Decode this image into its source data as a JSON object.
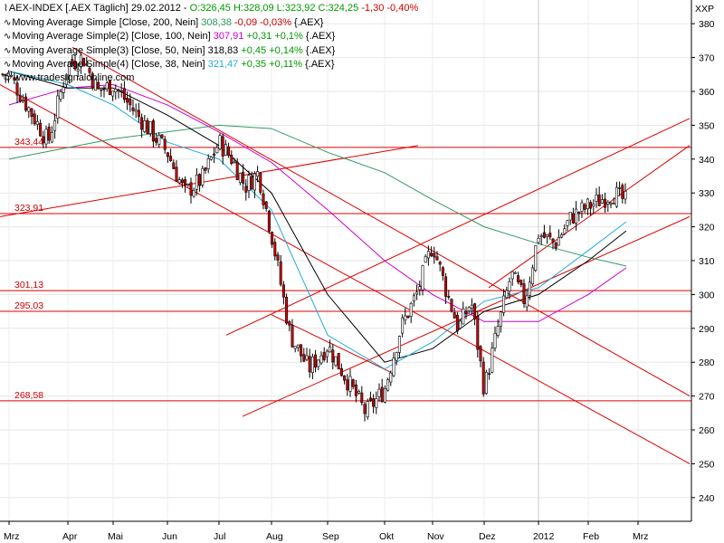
{
  "header": {
    "instrument": "AEX-INDEX [.AEX Täglich]",
    "date": "29.02.2012",
    "ohlc": "O:326,45 H:328,09 L:323,92 C:324,25",
    "change": "-1,30 -0,40%"
  },
  "indicators": [
    {
      "label": "Moving Average Simple [Close, 200, Nein]",
      "value": "308,38",
      "value_color": "#339966",
      "change": "-0,09 -0,03%",
      "change_sign": "neg",
      "suffix": "{.AEX}"
    },
    {
      "label": "Moving Average Simple(2) [Close, 100, Nein]",
      "value": "307,91",
      "value_color": "#cc00cc",
      "change": "+0,31 +0,1%",
      "change_sign": "pos",
      "suffix": "{.AEX}"
    },
    {
      "label": "Moving Average Simple(3) [Close, 50, Nein]",
      "value": "318,83",
      "value_color": "#000000",
      "change": "+0,45 +0,14%",
      "change_sign": "pos",
      "suffix": "{.AEX}"
    },
    {
      "label": "Moving Average Simple(4) [Close, 38, Nein]",
      "value": "321,47",
      "value_color": "#22aadd",
      "change": "+0,35 +0,11%",
      "change_sign": "pos",
      "suffix": "{.AEX}"
    }
  ],
  "watermark": "© www.tradesignalonline.com",
  "chart_data": {
    "type": "candlestick",
    "axis_label": "XXP",
    "x_ticks": [
      "Mrz",
      "Apr",
      "Mai",
      "Jun",
      "Jul",
      "Aug",
      "Sep",
      "Okt",
      "Nov",
      "Dez",
      "2012",
      "Feb",
      "Mrz"
    ],
    "y_ticks": [
      240,
      250,
      260,
      270,
      280,
      290,
      300,
      310,
      320,
      330,
      340,
      350,
      360,
      370,
      380
    ],
    "ylim": [
      233,
      387
    ],
    "horizontal_levels": [
      {
        "value": 343.44,
        "label": "343,44"
      },
      {
        "value": 323.91,
        "label": "323,91"
      },
      {
        "value": 301.13,
        "label": "301,13"
      },
      {
        "value": 295.03,
        "label": "295,03"
      },
      {
        "value": 268.58,
        "label": "268,58"
      }
    ],
    "trend_lines": [
      {
        "from": [
          "Mrz",
          362
        ],
        "to": [
          "Mrz",
          250
        ]
      },
      {
        "from": [
          "Mrz",
          373
        ],
        "to": [
          "Mrz",
          270
        ]
      },
      {
        "from": [
          "Mrz",
          323
        ],
        "to": [
          "Aug",
          344
        ]
      },
      {
        "from": [
          "Aug",
          288
        ],
        "to": [
          "Mrz",
          352
        ]
      },
      {
        "from": [
          "Aug",
          264
        ],
        "to": [
          "Mrz",
          323
        ]
      },
      {
        "from": [
          "Dez",
          302
        ],
        "to": [
          "Mrz",
          344
        ]
      },
      {
        "from": [
          "Aug",
          294
        ],
        "to": [
          "Okt",
          277
        ]
      }
    ],
    "moving_averages": [
      {
        "name": "MA 200",
        "color": "#339966",
        "points": [
          [
            "Mrz",
            340
          ],
          [
            "Mai",
            346
          ],
          [
            "Jul",
            350
          ],
          [
            "Aug",
            349
          ],
          [
            "Sep",
            342
          ],
          [
            "Okt",
            336
          ],
          [
            "Nov",
            328
          ],
          [
            "Dez",
            320
          ],
          [
            "2012",
            315
          ],
          [
            "Feb",
            311
          ],
          [
            "Mrz",
            308.4
          ]
        ]
      },
      {
        "name": "MA 100",
        "color": "#cc00cc",
        "points": [
          [
            "Mrz",
            356
          ],
          [
            "Apr",
            361
          ],
          [
            "Mai",
            362
          ],
          [
            "Jun",
            356
          ],
          [
            "Jul",
            348
          ],
          [
            "Aug",
            339
          ],
          [
            "Sep",
            325
          ],
          [
            "Okt",
            310
          ],
          [
            "Nov",
            300
          ],
          [
            "Dez",
            292
          ],
          [
            "2012",
            292
          ],
          [
            "Feb",
            300
          ],
          [
            "Mrz",
            307.9
          ]
        ]
      },
      {
        "name": "MA 50",
        "color": "#000000",
        "points": [
          [
            "Mrz",
            366
          ],
          [
            "Apr",
            361
          ],
          [
            "Mai",
            361
          ],
          [
            "Jun",
            353
          ],
          [
            "Jul",
            344
          ],
          [
            "Aug",
            330
          ],
          [
            "Sep",
            300
          ],
          [
            "Okt",
            280
          ],
          [
            "Nov",
            284
          ],
          [
            "Dez",
            295
          ],
          [
            "2012",
            300
          ],
          [
            "Feb",
            310
          ],
          [
            "Mrz",
            318.8
          ]
        ]
      },
      {
        "name": "MA 38",
        "color": "#22aadd",
        "points": [
          [
            "Mrz",
            366
          ],
          [
            "Apr",
            362
          ],
          [
            "Mai",
            356
          ],
          [
            "Jun",
            345
          ],
          [
            "Jul",
            340
          ],
          [
            "Aug",
            325
          ],
          [
            "Sep",
            288
          ],
          [
            "Okt",
            278
          ],
          [
            "Nov",
            286
          ],
          [
            "Dez",
            298
          ],
          [
            "2012",
            302
          ],
          [
            "Feb",
            313
          ],
          [
            "Mrz",
            321.5
          ]
        ]
      }
    ],
    "close_path": [
      [
        "Mrz",
        365
      ],
      [
        "Mrz",
        355
      ],
      [
        "Mrz",
        345
      ],
      [
        "Apr",
        368
      ],
      [
        "Apr",
        370
      ],
      [
        "Apr",
        360
      ],
      [
        "Mai",
        362
      ],
      [
        "Mai",
        352
      ],
      [
        "Jun",
        342
      ],
      [
        "Jun",
        330
      ],
      [
        "Jun",
        334
      ],
      [
        "Jul",
        345
      ],
      [
        "Jul",
        340
      ],
      [
        "Jul",
        332
      ],
      [
        "Jul",
        336
      ],
      [
        "Aug",
        318
      ],
      [
        "Aug",
        288
      ],
      [
        "Aug",
        278
      ],
      [
        "Sep",
        285
      ],
      [
        "Sep",
        275
      ],
      [
        "Sep",
        265
      ],
      [
        "Okt",
        272
      ],
      [
        "Okt",
        290
      ],
      [
        "Okt",
        300
      ],
      [
        "Nov",
        315
      ],
      [
        "Nov",
        302
      ],
      [
        "Nov",
        290
      ],
      [
        "Nov",
        298
      ],
      [
        "Dez",
        272
      ],
      [
        "Dez",
        290
      ],
      [
        "Dez",
        306
      ],
      [
        "Dez",
        298
      ],
      [
        "2012",
        318
      ],
      [
        "2012",
        315
      ],
      [
        "2012",
        323
      ],
      [
        "Feb",
        326
      ],
      [
        "Feb",
        330
      ],
      [
        "Mrz",
        325
      ]
    ],
    "grid": true
  }
}
